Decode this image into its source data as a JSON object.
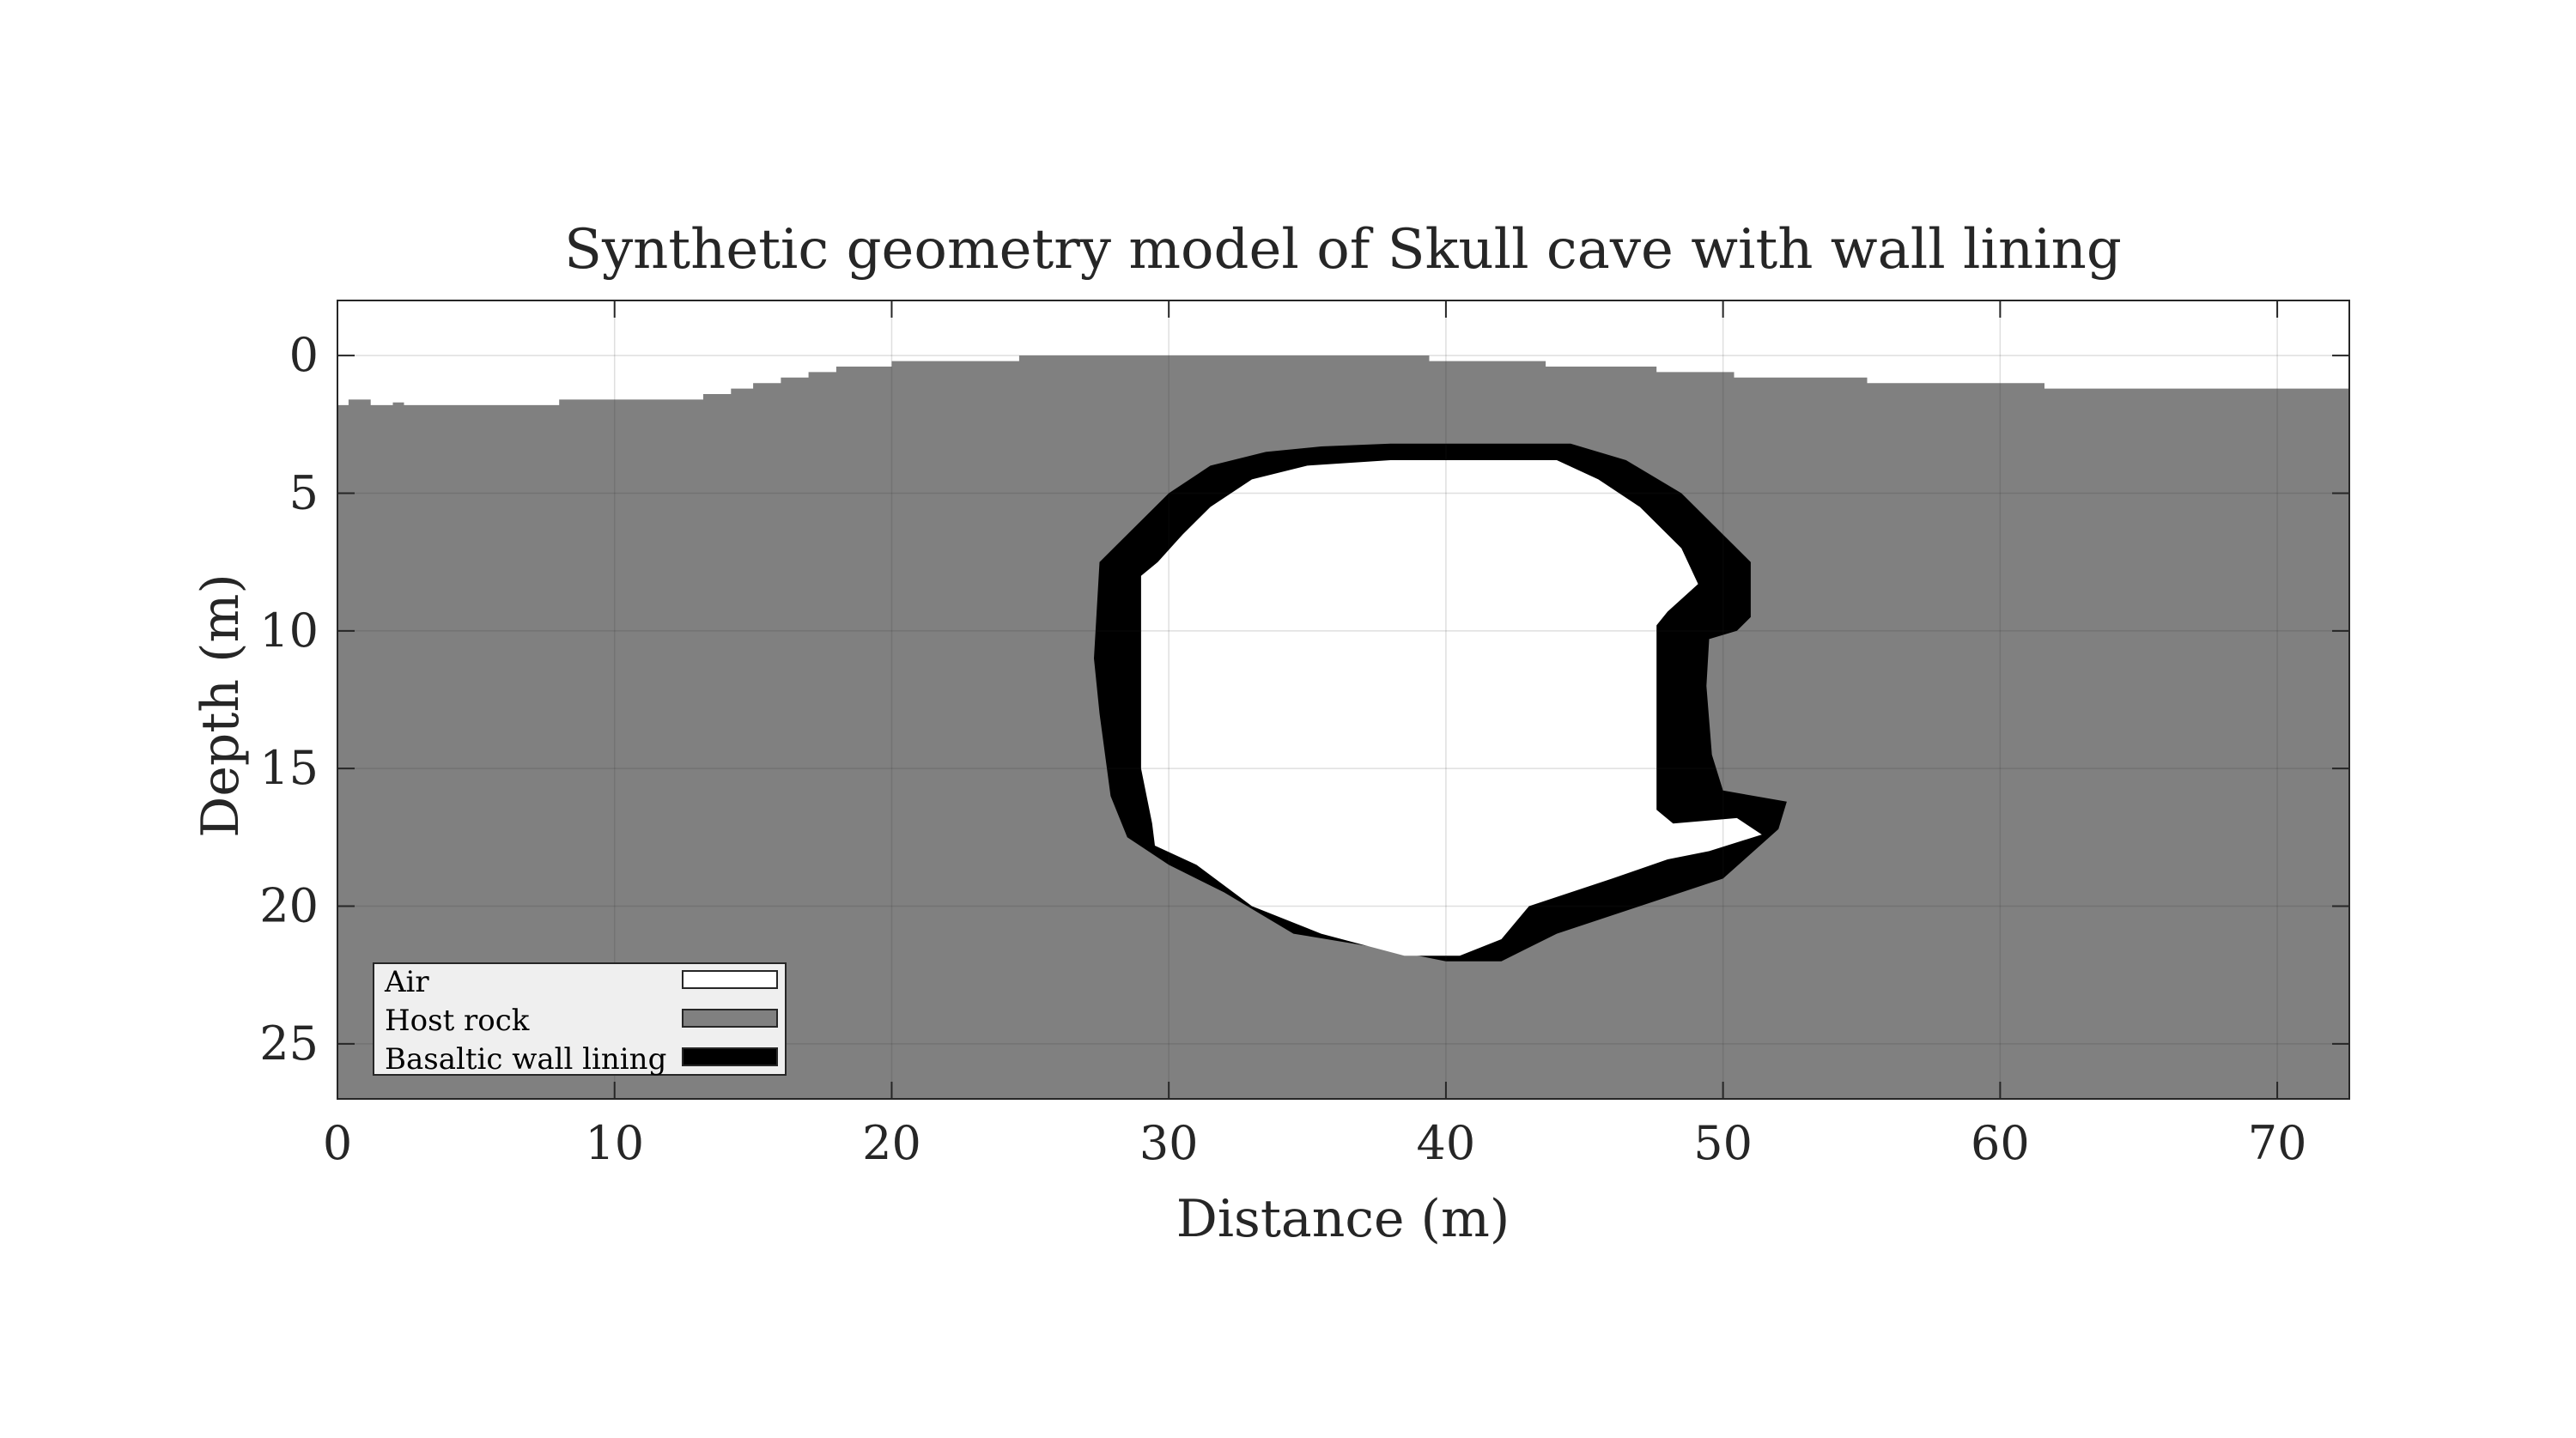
{
  "chart_data": {
    "type": "heatmap",
    "title": "Synthetic geometry model of Skull cave with wall lining",
    "xlabel": "Distance (m)",
    "ylabel": "Depth (m)",
    "xlim": [
      0,
      72.6
    ],
    "ylim": [
      27,
      -2
    ],
    "y_reversed": true,
    "xticks": [
      "0",
      "10",
      "20",
      "30",
      "40",
      "50",
      "60",
      "70"
    ],
    "yticks": [
      "0",
      "5",
      "10",
      "15",
      "20",
      "25"
    ],
    "grid": true,
    "legend_position": "bottom-left",
    "legend": [
      {
        "label": "Air",
        "color": "#ffffff"
      },
      {
        "label": "Host rock",
        "color": "#808080"
      },
      {
        "label": "Basaltic wall lining",
        "color": "#000000"
      }
    ],
    "ground_surface": {
      "x": [
        0,
        0.4,
        0.4,
        1.2,
        1.2,
        2.0,
        2.0,
        2.4,
        2.4,
        8.0,
        8.0,
        13.2,
        13.2,
        14.2,
        14.2,
        15.0,
        15.0,
        16.0,
        16.0,
        17.0,
        17.0,
        18.0,
        18.0,
        20.0,
        20.0,
        24.6,
        24.6,
        39.4,
        39.4,
        43.6,
        43.6,
        47.6,
        47.6,
        50.4,
        50.4,
        55.2,
        55.2,
        61.6,
        61.6,
        72.6
      ],
      "depth": [
        1.8,
        1.8,
        1.6,
        1.6,
        1.8,
        1.8,
        1.7,
        1.7,
        1.8,
        1.8,
        1.6,
        1.6,
        1.4,
        1.4,
        1.2,
        1.2,
        1.0,
        1.0,
        0.8,
        0.8,
        0.6,
        0.6,
        0.4,
        0.4,
        0.2,
        0.2,
        0.0,
        0.0,
        0.2,
        0.2,
        0.4,
        0.4,
        0.6,
        0.6,
        0.8,
        0.8,
        1.0,
        1.0,
        1.2,
        1.2
      ]
    },
    "lining_outer": {
      "x": [
        38.0,
        41.0,
        44.5,
        46.5,
        48.5,
        50.0,
        51.0,
        51.0,
        50.5,
        49.5,
        49.4,
        49.6,
        50.0,
        52.3,
        52.0,
        50.0,
        47.0,
        44.0,
        42.0,
        40.0,
        37.5,
        34.5,
        32.0,
        30.0,
        28.5,
        27.9,
        27.5,
        27.3,
        27.5,
        28.5,
        30.0,
        31.5,
        33.5,
        35.5
      ],
      "depth": [
        3.2,
        3.2,
        3.2,
        3.8,
        5.0,
        6.5,
        7.5,
        9.5,
        10.0,
        10.3,
        12.0,
        14.5,
        15.8,
        16.2,
        17.2,
        19.0,
        20.0,
        21.0,
        22.0,
        22.0,
        21.5,
        21.0,
        19.5,
        18.5,
        17.5,
        16.0,
        13.0,
        11.0,
        7.5,
        6.5,
        5.0,
        4.0,
        3.5,
        3.3
      ],
      "note": ""
    },
    "cave_air": {
      "x": [
        38.0,
        41.0,
        44.0,
        45.5,
        47.0,
        48.5,
        49.1,
        48.0,
        47.6,
        47.6,
        48.2,
        50.5,
        51.4,
        49.5,
        48.0,
        46.0,
        43.0,
        42.0,
        40.5,
        38.5,
        35.5,
        33.0,
        31.0,
        29.5,
        29.4,
        29.0,
        29.0,
        29.6,
        30.5,
        31.5,
        33.0,
        35.0
      ],
      "depth": [
        3.8,
        3.8,
        3.8,
        4.5,
        5.5,
        7.0,
        8.3,
        9.3,
        9.8,
        16.5,
        17.0,
        16.8,
        17.4,
        18.0,
        18.3,
        19.0,
        20.0,
        21.2,
        21.8,
        21.8,
        21.0,
        20.0,
        18.5,
        17.8,
        17.0,
        15.0,
        8.0,
        7.5,
        6.5,
        5.5,
        4.5,
        4.0
      ]
    }
  }
}
